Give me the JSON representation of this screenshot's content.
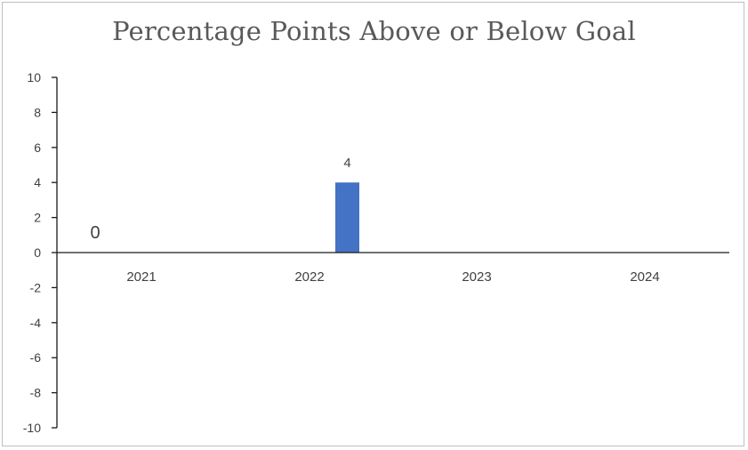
{
  "chart_data": {
    "type": "bar",
    "title": "Percentage Points Above or Below Goal",
    "categories": [
      "2021",
      "2022",
      "2023",
      "2024"
    ],
    "series": [
      {
        "values": [
          0,
          4,
          null,
          null
        ],
        "data_labels": [
          "0",
          "4",
          null,
          null
        ],
        "color": "#4472c4"
      }
    ],
    "ylim": [
      -10,
      10
    ],
    "yticks": [
      10,
      8,
      6,
      4,
      2,
      0,
      -2,
      -4,
      -6,
      -8,
      -10
    ],
    "grid": false,
    "legend": "none"
  }
}
